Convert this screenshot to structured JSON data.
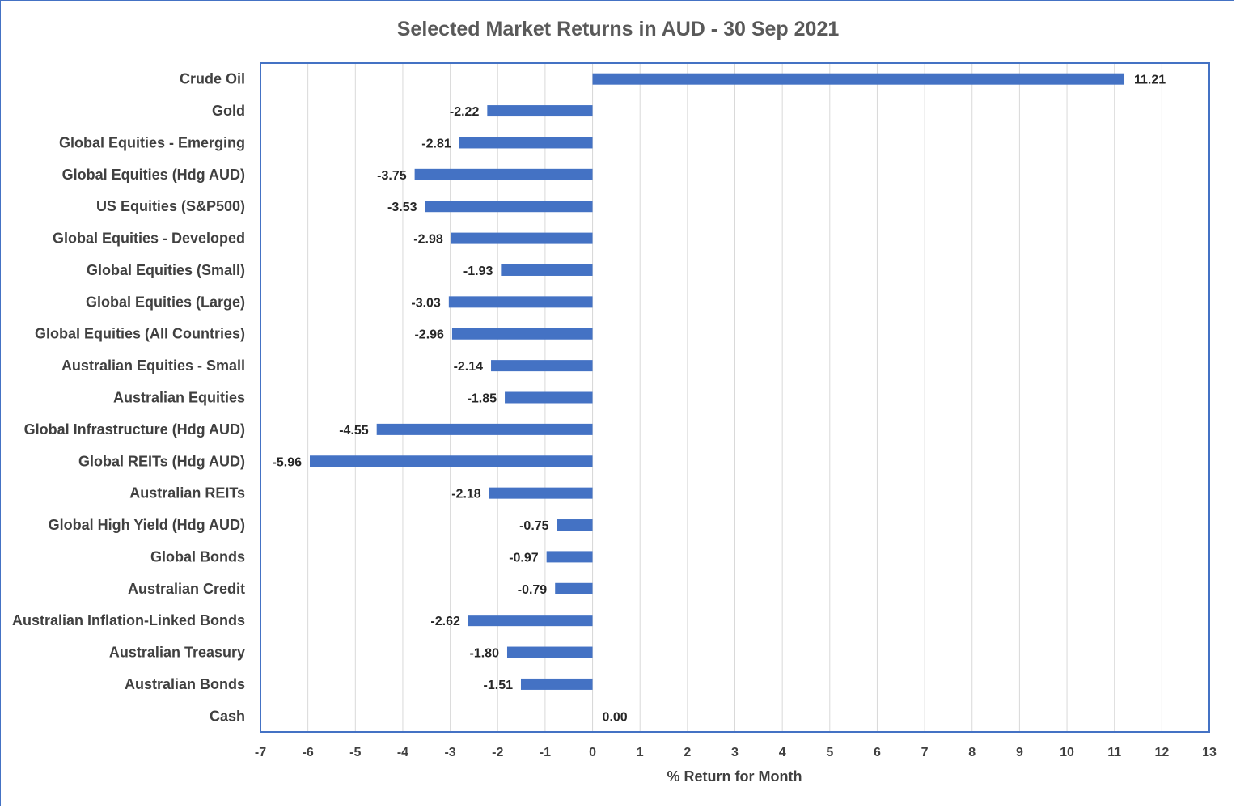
{
  "chart_data": {
    "type": "bar",
    "orientation": "horizontal",
    "title": "Selected Market Returns in AUD - 30 Sep 2021",
    "xlabel": "% Return for Month",
    "ylabel": "",
    "xlim": [
      -7,
      13
    ],
    "x_ticks": [
      "-7",
      "-6",
      "-5",
      "-4",
      "-3",
      "-2",
      "-1",
      "0",
      "1",
      "2",
      "3",
      "4",
      "5",
      "6",
      "7",
      "8",
      "9",
      "10",
      "11",
      "12",
      "13"
    ],
    "grid": "vertical",
    "bar_color": "#4472c4",
    "categories": [
      "Crude Oil",
      "Gold",
      "Global Equities - Emerging",
      "Global Equities (Hdg AUD)",
      "US Equities (S&P500)",
      "Global Equities - Developed",
      "Global Equities (Small)",
      "Global Equities (Large)",
      "Global Equities (All Countries)",
      "Australian Equities - Small",
      "Australian Equities",
      "Global Infrastructure (Hdg AUD)",
      "Global REITs (Hdg AUD)",
      "Australian REITs",
      "Global High Yield (Hdg AUD)",
      "Global Bonds",
      "Australian Credit",
      "Australian Inflation-Linked Bonds",
      "Australian Treasury",
      "Australian Bonds",
      "Cash"
    ],
    "values": [
      11.21,
      -2.22,
      -2.81,
      -3.75,
      -3.53,
      -2.98,
      -1.93,
      -3.03,
      -2.96,
      -2.14,
      -1.85,
      -4.55,
      -5.96,
      -2.18,
      -0.75,
      -0.97,
      -0.79,
      -2.62,
      -1.8,
      -1.51,
      0.0
    ],
    "data_labels": [
      "11.21",
      "-2.22",
      "-2.81",
      "-3.75",
      "-3.53",
      "-2.98",
      "-1.93",
      "-3.03",
      "-2.96",
      "-2.14",
      "-1.85",
      "-4.55",
      "-5.96",
      "-2.18",
      "-0.75",
      "-0.97",
      "-0.79",
      "-2.62",
      "-1.80",
      "-1.51",
      "0.00"
    ]
  }
}
